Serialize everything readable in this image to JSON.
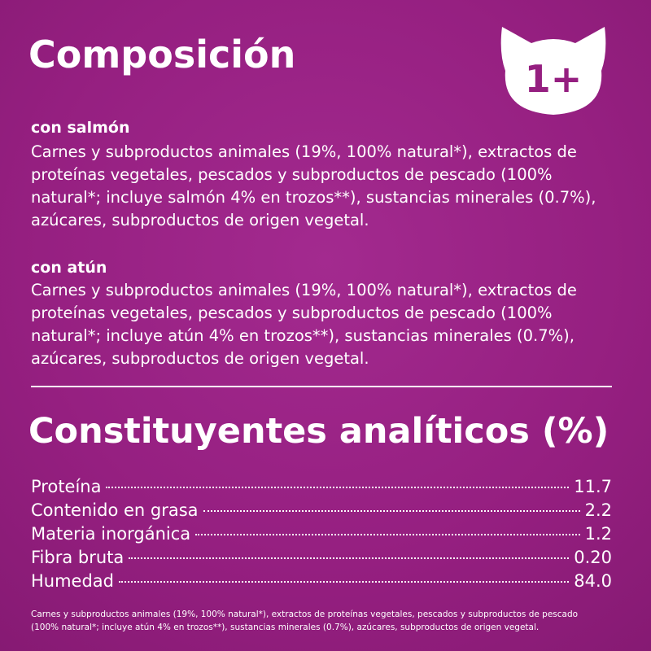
{
  "header": {
    "title": "Composición",
    "badge": "1+"
  },
  "sections": [
    {
      "heading": "con salmón",
      "lines": [
        "Carnes y subproductos animales (19%, 100% natural*), extractos de",
        "proteínas vegetales, pescados y subproductos de pescado (100%",
        "natural*; incluye salmón 4% en trozos**), sustancias minerales (0.7%),",
        "azúcares, subproductos de origen vegetal."
      ]
    },
    {
      "heading": "con atún",
      "lines": [
        "Carnes y subproductos animales (19%, 100% natural*), extractos de",
        "proteínas vegetales, pescados y subproductos de pescado (100%",
        "natural*; incluye atún 4% en trozos**), sustancias minerales (0.7%),",
        "azúcares, subproductos de origen vegetal."
      ]
    }
  ],
  "analysis": {
    "title": "Constituyentes analíticos (%)",
    "rows": [
      [
        "Proteína",
        "11.7"
      ],
      [
        "Contenido en grasa",
        "2.2"
      ],
      [
        "Materia inorgánica",
        "1.2"
      ],
      [
        "Fibra bruta",
        "0.20"
      ],
      [
        "Humedad",
        "84.0"
      ]
    ]
  },
  "footer": {
    "lines": [
      "Carnes y subproductos animales (19%, 100% natural*), extractos de proteínas vegetales, pescados y subproductos de pescado",
      "(100% natural*; incluye atún 4% en trozos**), sustancias minerales (0.7%), azúcares, subproductos de origen vegetal."
    ]
  }
}
